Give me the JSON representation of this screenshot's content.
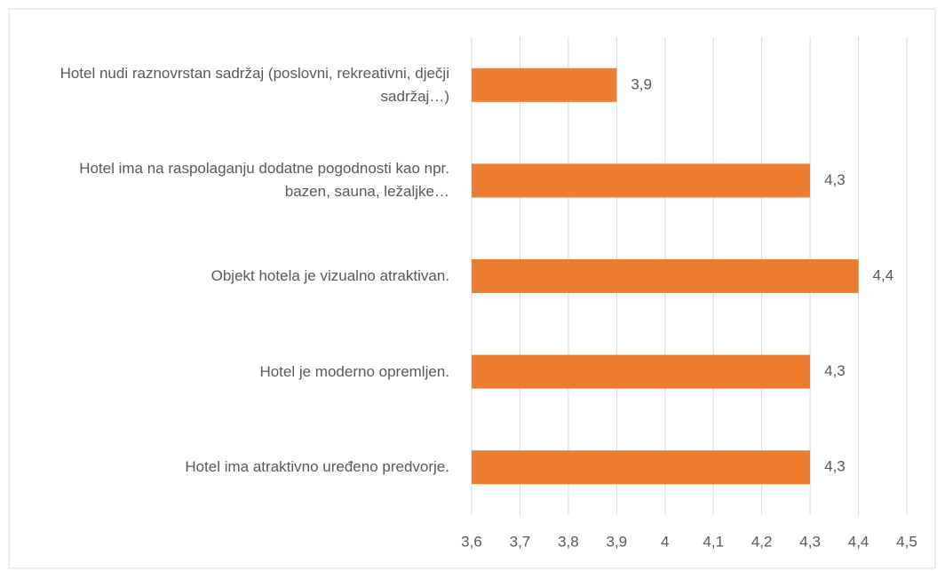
{
  "chart_data": {
    "type": "bar",
    "orientation": "horizontal",
    "categories": [
      "Hotel nudi raznovrstan sadržaj (poslovni, rekreativni, dječji sadržaj…)",
      "Hotel ima na raspolaganju dodatne pogodnosti kao npr. bazen, sauna, ležaljke…",
      "Objekt hotela je vizualno atraktivan.",
      "Hotel je moderno opremljen.",
      "Hotel ima atraktivno uređeno predvorje."
    ],
    "values": [
      3.9,
      4.3,
      4.4,
      4.3,
      4.3
    ],
    "value_labels": [
      "3,9",
      "4,3",
      "4,4",
      "4,3",
      "4,3"
    ],
    "color": "#ed7d31",
    "xlim": [
      3.6,
      4.5
    ],
    "xticks": [
      {
        "value": 3.6,
        "label": "3,6"
      },
      {
        "value": 3.7,
        "label": "3,7"
      },
      {
        "value": 3.8,
        "label": "3,8"
      },
      {
        "value": 3.9,
        "label": "3,9"
      },
      4,
      {
        "value": 4.1,
        "label": "4,1"
      },
      {
        "value": 4.2,
        "label": "4,2"
      },
      {
        "value": 4.3,
        "label": "4,3"
      },
      {
        "value": 4.4,
        "label": "4,4"
      },
      {
        "value": 4.5,
        "label": "4,5"
      }
    ],
    "grid": true
  }
}
